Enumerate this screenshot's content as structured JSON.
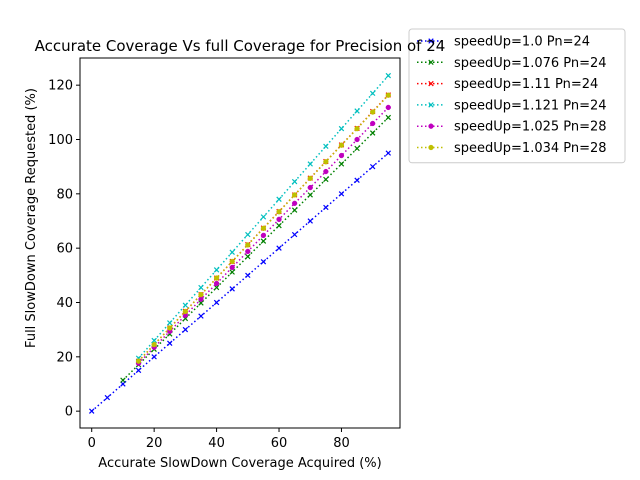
{
  "chart_data": {
    "type": "line",
    "title": "Accurate Coverage Vs full Coverage for Precision of 24",
    "xlabel": "Accurate SlowDown Coverage Acquired (%)",
    "ylabel": "Full SlowDown Coverage Requested (%)",
    "xlim": [
      -3.75,
      98.75
    ],
    "ylim": [
      -6.2,
      130
    ],
    "xticks": [
      0,
      20,
      40,
      60,
      80
    ],
    "yticks": [
      0,
      20,
      40,
      60,
      80,
      100,
      120
    ],
    "grid": false,
    "legend_position": "outside-top-right",
    "series": [
      {
        "name": "speedUp=1.0 Pn=24",
        "color": "#0000ff",
        "marker": "x",
        "x": [
          0,
          5,
          10,
          15,
          20,
          25,
          30,
          35,
          40,
          45,
          50,
          55,
          60,
          65,
          70,
          75,
          80,
          85,
          90,
          95
        ],
        "y": [
          0,
          5,
          10,
          15,
          20,
          25,
          30,
          35,
          40,
          45,
          50,
          55,
          60,
          65,
          70,
          75,
          80,
          85,
          90,
          95
        ]
      },
      {
        "name": "speedUp=1.076 Pn=24",
        "color": "#008000",
        "marker": "x",
        "x": [
          10,
          15,
          20,
          25,
          30,
          35,
          40,
          45,
          50,
          55,
          60,
          65,
          70,
          75,
          80,
          85,
          90,
          95
        ],
        "y": [
          11.4,
          17.1,
          22.8,
          28.4,
          34.1,
          39.8,
          45.5,
          51.2,
          56.9,
          62.6,
          68.3,
          74.0,
          79.6,
          85.3,
          91.0,
          96.7,
          102.4,
          108.1
        ]
      },
      {
        "name": "speedUp=1.11 Pn=24",
        "color": "#ff0000",
        "marker": "x",
        "x": [
          15,
          20,
          25,
          30,
          35,
          40,
          45,
          50,
          55,
          60,
          65,
          70,
          75,
          80,
          85,
          90,
          95
        ],
        "y": [
          18.4,
          24.5,
          30.6,
          36.8,
          42.9,
          49.0,
          55.1,
          61.3,
          67.4,
          73.5,
          79.6,
          85.8,
          91.9,
          98.0,
          104.1,
          110.3,
          116.4
        ]
      },
      {
        "name": "speedUp=1.121 Pn=24",
        "color": "#00bfbf",
        "marker": "x",
        "x": [
          15,
          20,
          25,
          30,
          35,
          40,
          45,
          50,
          55,
          60,
          65,
          70,
          75,
          80,
          85,
          90,
          95
        ],
        "y": [
          19.5,
          26.0,
          32.5,
          39.0,
          45.5,
          52.0,
          58.5,
          65.0,
          71.5,
          78.0,
          84.5,
          91.0,
          97.5,
          104.0,
          110.5,
          117.0,
          123.5
        ]
      },
      {
        "name": "speedUp=1.025 Pn=28",
        "color": "#bf00bf",
        "marker": "o",
        "x": [
          15,
          20,
          25,
          30,
          35,
          40,
          45,
          50,
          55,
          60,
          65,
          70,
          75,
          80,
          85,
          90,
          95
        ],
        "y": [
          17.6,
          23.5,
          29.4,
          35.3,
          41.2,
          47.0,
          52.9,
          58.8,
          64.7,
          70.6,
          76.5,
          82.3,
          88.2,
          94.1,
          100.0,
          105.9,
          111.8
        ]
      },
      {
        "name": "speedUp=1.034 Pn=28",
        "color": "#bfbf00",
        "marker": "o",
        "x": [
          15,
          20,
          25,
          30,
          35,
          40,
          45,
          50,
          55,
          60,
          65,
          70,
          75,
          80,
          85,
          90,
          95
        ],
        "y": [
          18.4,
          24.5,
          30.6,
          36.7,
          42.9,
          49.0,
          55.1,
          61.2,
          67.3,
          73.4,
          79.6,
          85.7,
          91.8,
          97.9,
          104.0,
          110.1,
          116.3
        ]
      }
    ]
  }
}
